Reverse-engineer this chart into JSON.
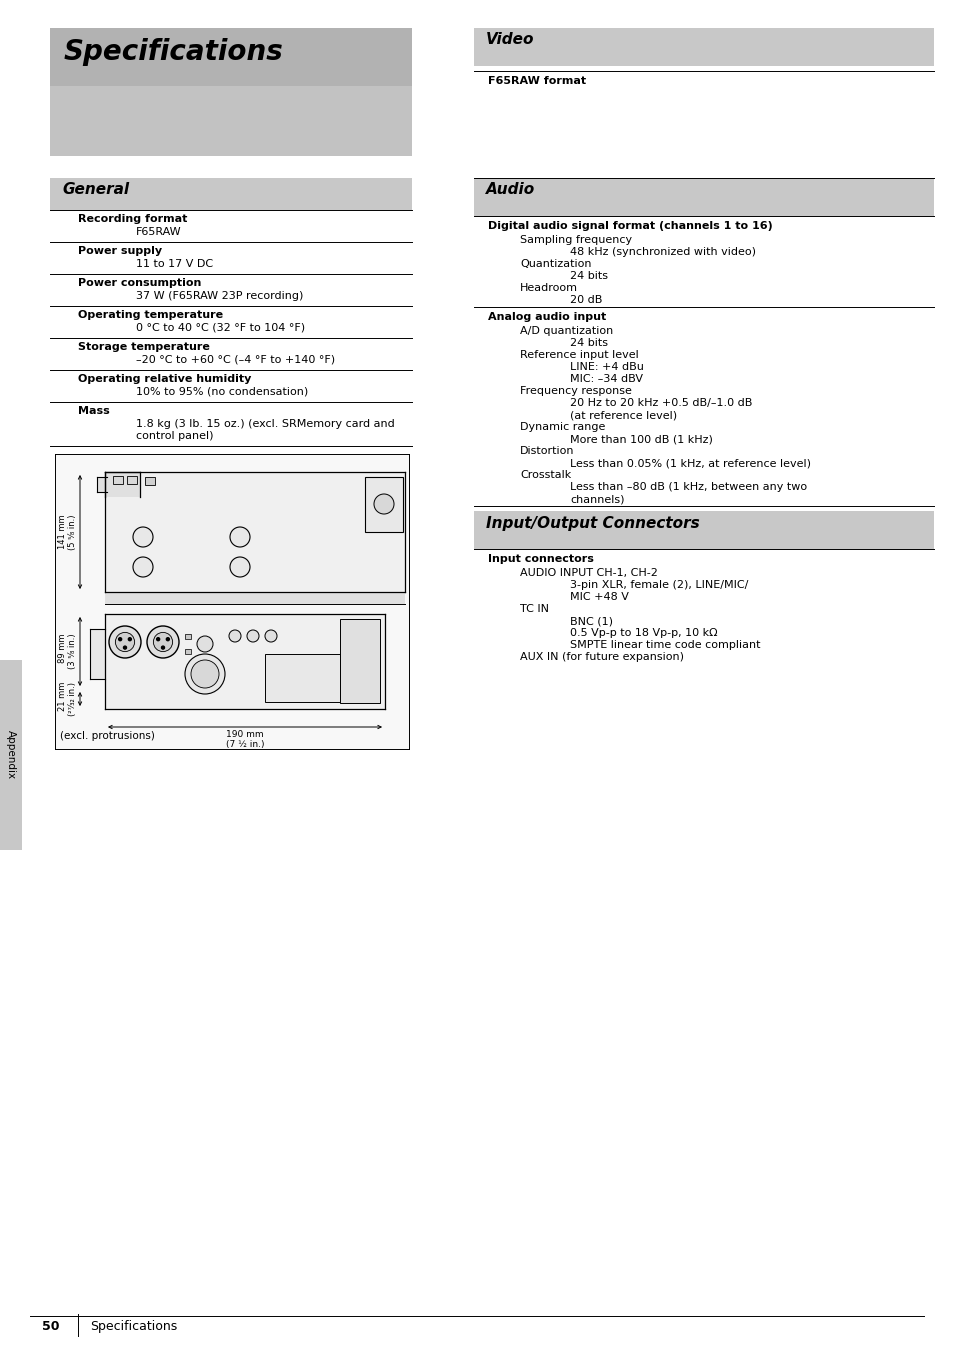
{
  "page_bg": "#ffffff",
  "specs_header_bg": "#b2b2b2",
  "specs_header_lower_bg": "#c0c0c0",
  "section_bg": "#c8c8c8",
  "appendix_tab_bg": "#c8c8c8",
  "title": "Specifications",
  "general_title": "General",
  "video_title": "Video",
  "audio_title": "Audio",
  "io_title": "Input/Output Connectors",
  "general_items": [
    {
      "label": "Recording format",
      "value": "F65RAW"
    },
    {
      "label": "Power supply",
      "value": "11 to 17 V DC"
    },
    {
      "label": "Power consumption",
      "value": "37 W (F65RAW 23P recording)"
    },
    {
      "label": "Operating temperature",
      "value": "0 °C to 40 °C (32 °F to 104 °F)"
    },
    {
      "label": "Storage temperature",
      "value": "–20 °C to +60 °C (–4 °F to +140 °F)"
    },
    {
      "label": "Operating relative humidity",
      "value": "10% to 95% (no condensation)"
    },
    {
      "label": "Mass",
      "value": "1.8 kg (3 lb. 15 oz.) (excl. SRMemory card and\ncontrol panel)"
    }
  ],
  "video_label": "F65RAW format",
  "audio_section1_label": "Digital audio signal format (channels 1 to 16)",
  "audio_section1_items": [
    {
      "label": "Sampling frequency",
      "value": "48 kHz (synchronized with video)"
    },
    {
      "label": "Quantization",
      "value": "24 bits"
    },
    {
      "label": "Headroom",
      "value": "20 dB"
    }
  ],
  "audio_section2_label": "Analog audio input",
  "audio_section2_items": [
    {
      "label": "A/D quantization",
      "value": "24 bits"
    },
    {
      "label": "Reference input level",
      "value": "LINE: +4 dBu\nMIC: –34 dBV"
    },
    {
      "label": "Frequency response",
      "value": "20 Hz to 20 kHz +0.5 dB/–1.0 dB\n(at reference level)"
    },
    {
      "label": "Dynamic range",
      "value": "More than 100 dB (1 kHz)"
    },
    {
      "label": "Distortion",
      "value": "Less than 0.05% (1 kHz, at reference level)"
    },
    {
      "label": "Crosstalk",
      "value": "Less than –80 dB (1 kHz, between any two\nchannels)"
    }
  ],
  "io_section1_label": "Input connectors",
  "io_section1_items": [
    {
      "label": "AUDIO INPUT CH-1, CH-2",
      "value": "3-pin XLR, female (2), LINE/MIC/\nMIC +48 V"
    },
    {
      "label": "TC IN",
      "value": "BNC (1)\n0.5 Vp-p to 18 Vp-p, 10 kΩ\nSMPTE linear time code compliant"
    },
    {
      "label": "AUX IN (for future expansion)",
      "value": ""
    }
  ],
  "footer_num": "50",
  "footer_label": "Specifications",
  "appendix_label": "Appendix",
  "dim_141": "141 mm\n(5 ⁵⁄₈ in.)",
  "dim_89": "89 mm\n(3 ⁵⁄₈ in.)",
  "dim_21": "21 mm\n(²⁷⁄₃₂ in.)",
  "dim_190": "190 mm\n(7 ½ in.)",
  "excl_text": "(excl. protrusions)"
}
